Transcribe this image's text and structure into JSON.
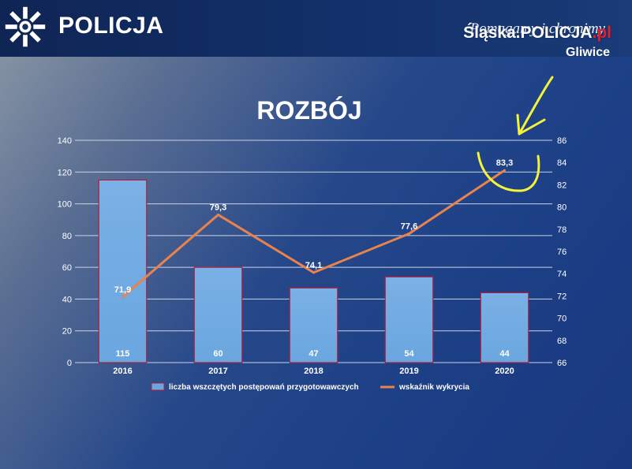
{
  "header": {
    "brand": "POLICJA",
    "motto": "Pomagamy i chronimy",
    "site_name": "Śląska.POLICJA",
    "site_tld": ".pl",
    "unit": "Gliwice",
    "logo_icon": "police-star-icon"
  },
  "colors": {
    "bar_fill": "#6aa6df",
    "bar_edge": "#b01e3c",
    "line": "#e8834e",
    "annotation": "#f4f23a"
  },
  "chart_data": {
    "type": "bar",
    "title": "ROZBÓJ",
    "categories": [
      "2016",
      "2017",
      "2018",
      "2019",
      "2020"
    ],
    "series": [
      {
        "name": "liczba wszczętych postępowań przygotowawczych",
        "type": "bar",
        "axis": "left",
        "values": [
          115,
          60,
          47,
          54,
          44
        ],
        "labels": [
          "115",
          "60",
          "47",
          "54",
          "44"
        ]
      },
      {
        "name": "wskaźnik wykrycia",
        "type": "line",
        "axis": "right",
        "values": [
          71.9,
          79.3,
          74.1,
          77.6,
          83.3
        ],
        "labels": [
          "71,9",
          "79,3",
          "74,1",
          "77,6",
          "83,3"
        ]
      }
    ],
    "y_left": {
      "min": 0,
      "max": 140,
      "ticks": [
        "0",
        "20",
        "40",
        "60",
        "80",
        "100",
        "120",
        "140"
      ]
    },
    "y_right": {
      "min": 66,
      "max": 86,
      "ticks": [
        "66",
        "68",
        "70",
        "72",
        "74",
        "76",
        "78",
        "80",
        "82",
        "84",
        "86"
      ]
    },
    "grid": true,
    "legend_position": "bottom"
  }
}
